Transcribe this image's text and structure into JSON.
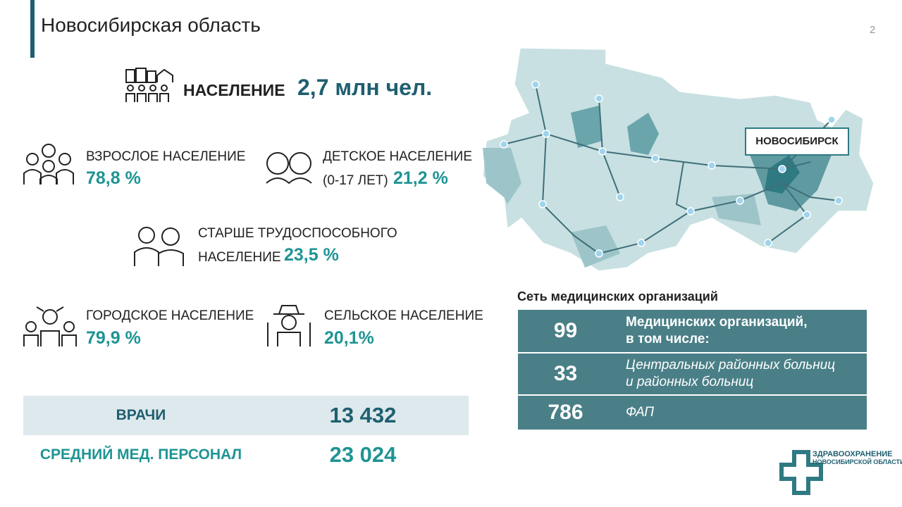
{
  "header": {
    "title": "Новосибирская область",
    "page": "2"
  },
  "population": {
    "label": "НАСЕЛЕНИЕ",
    "value": "2,7 млн чел."
  },
  "groups": {
    "adult": {
      "label": "ВЗРОСЛОЕ НАСЕЛЕНИЕ",
      "value": "78,8 %"
    },
    "child": {
      "label": "ДЕТСКОЕ НАСЕЛЕНИЕ",
      "sublabel": "(0-17 ЛЕТ)",
      "value": "21,2 %"
    },
    "senior": {
      "label_lines": [
        "СТАРШЕ ТРУДОСПОСОБНОГО",
        "НАСЕЛЕНИЕ"
      ],
      "value": "23,5 %"
    },
    "urban": {
      "label": "ГОРОДСКОЕ НАСЕЛЕНИЕ",
      "value": "79,9 %"
    },
    "rural": {
      "label": "СЕЛЬСКОЕ НАСЕЛЕНИЕ",
      "value": "20,1%"
    }
  },
  "staff": {
    "rows": [
      {
        "label": "ВРАЧИ",
        "value": "13 432"
      },
      {
        "label": "СРЕДНИЙ МЕД. ПЕРСОНАЛ",
        "value": "23 024"
      }
    ]
  },
  "map": {
    "city_label": "НОВОСИБИРСК"
  },
  "network": {
    "title": "Сеть медицинских организаций",
    "rows": [
      {
        "count": "99",
        "lines": [
          "Медицинских организаций,",
          "в том числе:"
        ]
      },
      {
        "count": "33",
        "lines": [
          "Центральных районных больниц",
          "и районных больниц"
        ]
      },
      {
        "count": "786",
        "lines": [
          "ФАП"
        ]
      }
    ]
  },
  "logo": {
    "lines": [
      "ЗДРАВООХРАНЕНИЕ",
      "НОВОСИБИРСКОЙ ОБЛАСТИ"
    ]
  }
}
